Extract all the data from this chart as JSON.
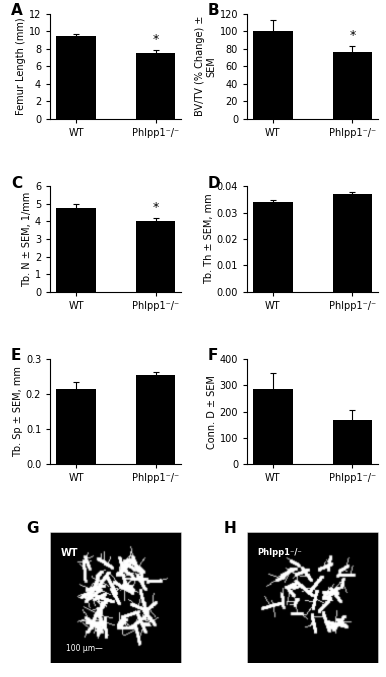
{
  "panel_A": {
    "label": "A",
    "categories": [
      "WT",
      "Phlpp1⁻/⁻"
    ],
    "values": [
      9.5,
      7.5
    ],
    "errors": [
      0.15,
      0.3
    ],
    "ylabel": "Femur Length (mm)",
    "ylim": [
      0,
      12
    ],
    "yticks": [
      0,
      2,
      4,
      6,
      8,
      10,
      12
    ],
    "sig": [
      false,
      true
    ]
  },
  "panel_B": {
    "label": "B",
    "categories": [
      "WT",
      "Phlpp1⁻/⁻"
    ],
    "values": [
      100,
      76
    ],
    "errors": [
      13,
      7
    ],
    "ylabel": "BV/TV (% Change) ±\nSEM",
    "ylim": [
      0,
      120
    ],
    "yticks": [
      0,
      20,
      40,
      60,
      80,
      100,
      120
    ],
    "sig": [
      false,
      true
    ]
  },
  "panel_C": {
    "label": "C",
    "categories": [
      "WT",
      "Phlpp1⁻/⁻"
    ],
    "values": [
      4.75,
      4.0
    ],
    "errors": [
      0.25,
      0.2
    ],
    "ylabel": "Tb. N ± SEM, 1/mm",
    "ylim": [
      0,
      6
    ],
    "yticks": [
      0,
      1,
      2,
      3,
      4,
      5,
      6
    ],
    "sig": [
      false,
      true
    ]
  },
  "panel_D": {
    "label": "D",
    "categories": [
      "WT",
      "Phlpp1⁻/⁻"
    ],
    "values": [
      0.034,
      0.037
    ],
    "errors": [
      0.0008,
      0.0008
    ],
    "ylabel": "Tb. Th ± SEM, mm",
    "ylim": [
      0,
      0.04
    ],
    "yticks": [
      0,
      0.01,
      0.02,
      0.03,
      0.04
    ],
    "sig": [
      false,
      false
    ]
  },
  "panel_E": {
    "label": "E",
    "categories": [
      "WT",
      "Phlpp1⁻/⁻"
    ],
    "values": [
      0.215,
      0.255
    ],
    "errors": [
      0.018,
      0.008
    ],
    "ylabel": "Tb. Sp ± SEM, mm",
    "ylim": [
      0,
      0.3
    ],
    "yticks": [
      0,
      0.1,
      0.2,
      0.3
    ],
    "sig": [
      false,
      false
    ]
  },
  "panel_F": {
    "label": "F",
    "categories": [
      "WT",
      "Phlpp1⁻/⁻"
    ],
    "values": [
      285,
      170
    ],
    "errors": [
      60,
      35
    ],
    "ylabel": "Conn. D ± SEM",
    "ylim": [
      0,
      400
    ],
    "yticks": [
      0,
      100,
      200,
      300,
      400
    ],
    "sig": [
      false,
      false
    ]
  },
  "bar_color": "#000000",
  "bar_width": 0.5,
  "panel_G_label": "G",
  "panel_H_label": "H",
  "wt_label": "WT",
  "ko_label": "Phlpp1⁻/⁻",
  "scale_bar_text": "100 μm—",
  "background_color": "#ffffff",
  "tick_fontsize": 7,
  "axis_label_fontsize": 7,
  "panel_label_fontsize": 11,
  "xticklabel_fontsize": 7
}
